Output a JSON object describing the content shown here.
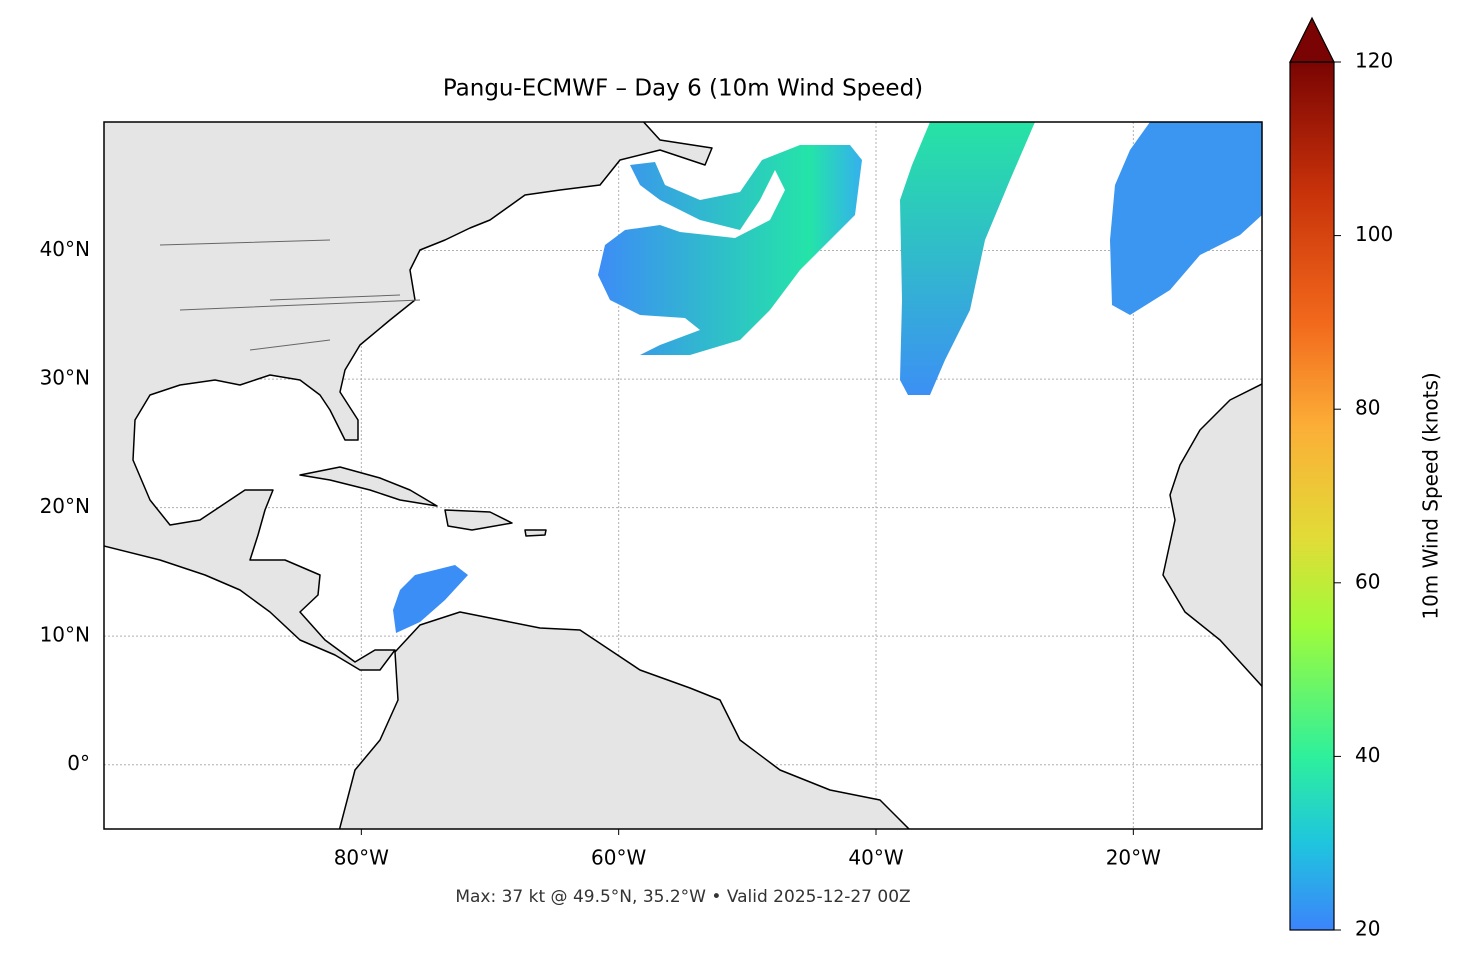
{
  "chart_data": {
    "type": "map",
    "title": "Pangu-ECMWF – Day 6 (10m Wind Speed)",
    "footer": "Max: 37 kt @ 49.5°N, 35.2°W • Valid 2025-12-27 00Z",
    "xlim": [
      -100,
      -10
    ],
    "ylim": [
      -5,
      50
    ],
    "xticks": [
      {
        "value": -80,
        "label": "80°W"
      },
      {
        "value": -60,
        "label": "60°W"
      },
      {
        "value": -40,
        "label": "40°W"
      },
      {
        "value": -20,
        "label": "20°W"
      }
    ],
    "yticks": [
      {
        "value": 0,
        "label": "0°"
      },
      {
        "value": 10,
        "label": "10°N"
      },
      {
        "value": 20,
        "label": "20°N"
      },
      {
        "value": 30,
        "label": "30°N"
      },
      {
        "value": 40,
        "label": "40°N"
      }
    ],
    "grid": true,
    "colorbar": {
      "label": "10m Wind Speed (knots)",
      "lim": [
        20,
        120
      ],
      "ticks": [
        20,
        40,
        60,
        80,
        100,
        120
      ]
    }
  }
}
